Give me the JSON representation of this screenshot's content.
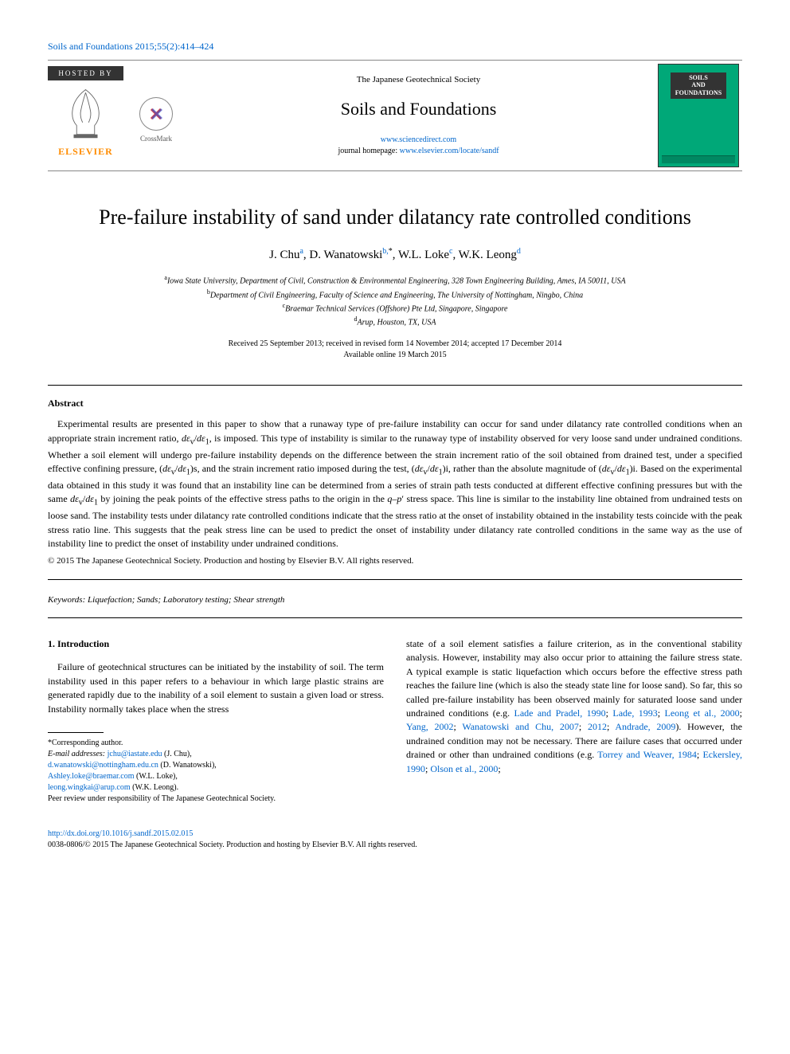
{
  "citation": "Soils and Foundations 2015;55(2):414–424",
  "header": {
    "hosted_by": "HOSTED BY",
    "elsevier_label": "ELSEVIER",
    "crossmark_label": "CrossMark",
    "society": "The Japanese Geotechnical Society",
    "journal_title": "Soils and Foundations",
    "sciencedirect_url": "www.sciencedirect.com",
    "homepage_prefix": "journal homepage: ",
    "homepage_url": "www.elsevier.com/locate/sandf",
    "cover_title_line1": "SOILS",
    "cover_title_line2": "AND",
    "cover_title_line3": "FOUNDATIONS",
    "cover_bg": "#00a878"
  },
  "article": {
    "title": "Pre-failure instability of sand under dilatancy rate controlled conditions",
    "authors_html": "J. Chu<sup>a</sup>, D. Wanatowski<sup>b,</sup><sup class='star'>*</sup>, W.L. Loke<sup>c</sup>, W.K. Leong<sup>d</sup>",
    "affiliations": [
      {
        "sup": "a",
        "text": "Iowa State University, Department of Civil, Construction & Environmental Engineering, 328 Town Engineering Building, Ames, IA 50011, USA"
      },
      {
        "sup": "b",
        "text": "Department of Civil Engineering, Faculty of Science and Engineering, The University of Nottingham, Ningbo, China"
      },
      {
        "sup": "c",
        "text": "Braemar Technical Services (Offshore) Pte Ltd, Singapore, Singapore"
      },
      {
        "sup": "d",
        "text": "Arup, Houston, TX, USA"
      }
    ],
    "dates_line1": "Received 25 September 2013; received in revised form 14 November 2014; accepted 17 December 2014",
    "dates_line2": "Available online 19 March 2015"
  },
  "abstract": {
    "heading": "Abstract",
    "text": "Experimental results are presented in this paper to show that a runaway type of pre-failure instability can occur for sand under dilatancy rate controlled conditions when an appropriate strain increment ratio, dεv/dε1, is imposed. This type of instability is similar to the runaway type of instability observed for very loose sand under undrained conditions. Whether a soil element will undergo pre-failure instability depends on the difference between the strain increment ratio of the soil obtained from drained test, under a specified effective confining pressure, (dεv/dε1)s, and the strain increment ratio imposed during the test, (dεv/dε1)i, rather than the absolute magnitude of (dεv/dε1)i. Based on the experimental data obtained in this study it was found that an instability line can be determined from a series of strain path tests conducted at different effective confining pressures but with the same dεv/dε1 by joining the peak points of the effective stress paths to the origin in the q–p′ stress space. This line is similar to the instability line obtained from undrained tests on loose sand. The instability tests under dilatancy rate controlled conditions indicate that the stress ratio at the onset of instability obtained in the instability tests coincide with the peak stress ratio line. This suggests that the peak stress line can be used to predict the onset of instability under dilatancy rate controlled conditions in the same way as the use of instability line to predict the onset of instability under undrained conditions.",
    "copyright": "© 2015 The Japanese Geotechnical Society. Production and hosting by Elsevier B.V. All rights reserved."
  },
  "keywords": {
    "label": "Keywords:",
    "text": " Liquefaction; Sands; Laboratory testing; Shear strength"
  },
  "intro": {
    "heading": "1. Introduction",
    "col1": "Failure of geotechnical structures can be initiated by the instability of soil. The term instability used in this paper refers to a behaviour in which large plastic strains are generated rapidly due to the inability of a soil element to sustain a given load or stress. Instability normally takes place when the stress",
    "col2_pre": "state of a soil element satisfies a failure criterion, as in the conventional stability analysis. However, instability may also occur prior to attaining the failure stress state. A typical example is static liquefaction which occurs before the effective stress path reaches the failure line (which is also the steady state line for loose sand). So far, this so called pre-failure instability has been observed mainly for saturated loose sand under undrained conditions (e.g. ",
    "refs": [
      "Lade and Pradel, 1990",
      "Lade, 1993",
      "Leong et al., 2000",
      "Yang, 2002",
      "Wanatowski and Chu, 2007",
      "2012",
      "Andrade, 2009"
    ],
    "col2_mid": "). However, the undrained condition may not be necessary. There are failure cases that occurred under drained or other than undrained conditions (e.g. ",
    "refs2": [
      "Torrey and Weaver, 1984",
      "Eckersley, 1990",
      "Olson et al., 2000"
    ]
  },
  "footnotes": {
    "corresponding": "*Corresponding author.",
    "email_label": "E-mail addresses:",
    "emails": [
      {
        "addr": "jchu@iastate.edu",
        "who": " (J. Chu),"
      },
      {
        "addr": "d.wanatowski@nottingham.edu.cn",
        "who": " (D. Wanatowski),"
      },
      {
        "addr": "Ashley.loke@braemar.com",
        "who": " (W.L. Loke),"
      },
      {
        "addr": "leong.wingkai@arup.com",
        "who": " (W.K. Leong)."
      }
    ],
    "peer_review": "Peer review under responsibility of The Japanese Geotechnical Society."
  },
  "doi": {
    "url": "http://dx.doi.org/10.1016/j.sandf.2015.02.015",
    "issn_line": "0038-0806/© 2015 The Japanese Geotechnical Society. Production and hosting by Elsevier B.V. All rights reserved."
  },
  "colors": {
    "link": "#0066cc",
    "elsevier_orange": "#ff8c00",
    "cover_green": "#00a878"
  }
}
